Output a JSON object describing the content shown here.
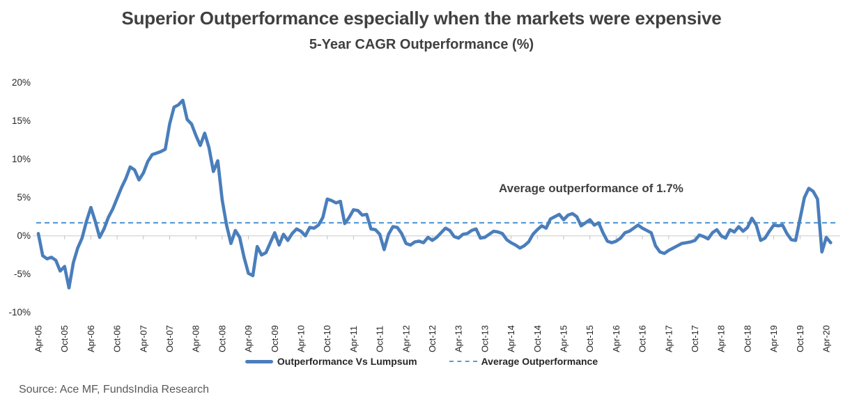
{
  "header": {
    "title": "Superior Outperformance especially when the markets were expensive",
    "subtitle": "5-Year CAGR Outperformance (%)"
  },
  "annotation": {
    "text": "Average outperformance of 1.7%"
  },
  "legend": [
    {
      "label": "Outperformance Vs Lumpsum",
      "style": "solid"
    },
    {
      "label": "Average Outperformance",
      "style": "dashed"
    }
  ],
  "source": {
    "text": "Source: Ace MF, FundsIndia Research"
  },
  "colors": {
    "line": "#4A7EBB",
    "average": "#5B9BD5",
    "grid": "#D9D9D9",
    "tick": "#BFBFBF",
    "title_text": "#404040",
    "axis_text": "#262626",
    "source_text": "#595959"
  },
  "chart_data": {
    "type": "line",
    "title": "Superior Outperformance especially when the markets were expensive",
    "subtitle": "5-Year CAGR Outperformance (%)",
    "ylabel": "5-Year CAGR Outperformance (%)",
    "xlabel": "",
    "ylim": [
      -10,
      20
    ],
    "y_tick_step": 5,
    "y_tick_labels": [
      "20%",
      "15%",
      "10%",
      "5%",
      "0%",
      "-5%",
      "-10%"
    ],
    "grid": "zero-line-only",
    "legend_position": "bottom",
    "x_start_month": "Apr-05",
    "x_end_month": "May-20",
    "x_interval": "monthly",
    "x_tick_every_months": 6,
    "x_tick_labels": [
      "Apr-05",
      "Oct-05",
      "Apr-06",
      "Oct-06",
      "Apr-07",
      "Oct-07",
      "Apr-08",
      "Oct-08",
      "Apr-09",
      "Oct-09",
      "Apr-10",
      "Oct-10",
      "Apr-11",
      "Oct-11",
      "Apr-12",
      "Oct-12",
      "Apr-13",
      "Oct-13",
      "Apr-14",
      "Oct-14",
      "Apr-15",
      "Oct-15",
      "Apr-16",
      "Oct-16",
      "Apr-17",
      "Oct-17",
      "Apr-18",
      "Oct-18",
      "Apr-19",
      "Oct-19",
      "Apr-20"
    ],
    "average_value": 1.7,
    "series": [
      {
        "name": "Outperformance Vs Lumpsum",
        "style": "solid",
        "values": [
          0.3,
          -2.6,
          -3.0,
          -2.8,
          -3.2,
          -4.6,
          -4.0,
          -6.8,
          -3.5,
          -1.6,
          -0.3,
          1.9,
          3.7,
          1.9,
          -0.2,
          0.9,
          2.4,
          3.5,
          4.9,
          6.3,
          7.5,
          9.0,
          8.6,
          7.3,
          8.2,
          9.7,
          10.6,
          10.8,
          11.0,
          11.3,
          14.6,
          16.8,
          17.1,
          17.7,
          15.2,
          14.6,
          13.1,
          11.8,
          13.4,
          11.5,
          8.4,
          9.8,
          4.7,
          1.4,
          -1.0,
          0.7,
          -0.2,
          -2.8,
          -4.9,
          -5.2,
          -1.4,
          -2.5,
          -2.2,
          -0.9,
          0.4,
          -1.2,
          0.2,
          -0.6,
          0.3,
          0.9,
          0.6,
          0.0,
          1.1,
          1.0,
          1.4,
          2.4,
          4.8,
          4.6,
          4.3,
          4.5,
          1.6,
          2.4,
          3.4,
          3.3,
          2.7,
          2.8,
          0.9,
          0.8,
          0.2,
          -1.8,
          0.2,
          1.2,
          1.1,
          0.3,
          -1.0,
          -1.2,
          -0.8,
          -0.7,
          -0.9,
          -0.2,
          -0.6,
          -0.2,
          0.4,
          1.0,
          0.7,
          -0.1,
          -0.3,
          0.2,
          0.3,
          0.7,
          0.9,
          -0.3,
          -0.2,
          0.2,
          0.6,
          0.5,
          0.3,
          -0.5,
          -0.9,
          -1.2,
          -1.6,
          -1.3,
          -0.8,
          0.2,
          0.8,
          1.3,
          1.0,
          2.2,
          2.5,
          2.8,
          2.1,
          2.7,
          2.9,
          2.5,
          1.3,
          1.7,
          2.1,
          1.4,
          1.7,
          0.4,
          -0.7,
          -0.9,
          -0.7,
          -0.3,
          0.4,
          0.6,
          1.0,
          1.4,
          1.0,
          0.7,
          0.4,
          -1.3,
          -2.1,
          -2.3,
          -1.9,
          -1.6,
          -1.3,
          -1.0,
          -0.9,
          -0.8,
          -0.6,
          0.1,
          -0.1,
          -0.4,
          0.4,
          0.8,
          0.0,
          -0.3,
          0.8,
          0.5,
          1.2,
          0.6,
          1.1,
          2.3,
          1.4,
          -0.6,
          -0.3,
          0.6,
          1.4,
          1.3,
          1.4,
          0.3,
          -0.5,
          -0.6,
          2.2,
          5.0,
          6.2,
          5.8,
          4.8,
          -2.1,
          -0.2,
          -0.9
        ]
      },
      {
        "name": "Average Outperformance",
        "style": "dashed",
        "constant_value": 1.7
      }
    ],
    "annotation": {
      "text": "Average outperformance of 1.7%"
    }
  }
}
